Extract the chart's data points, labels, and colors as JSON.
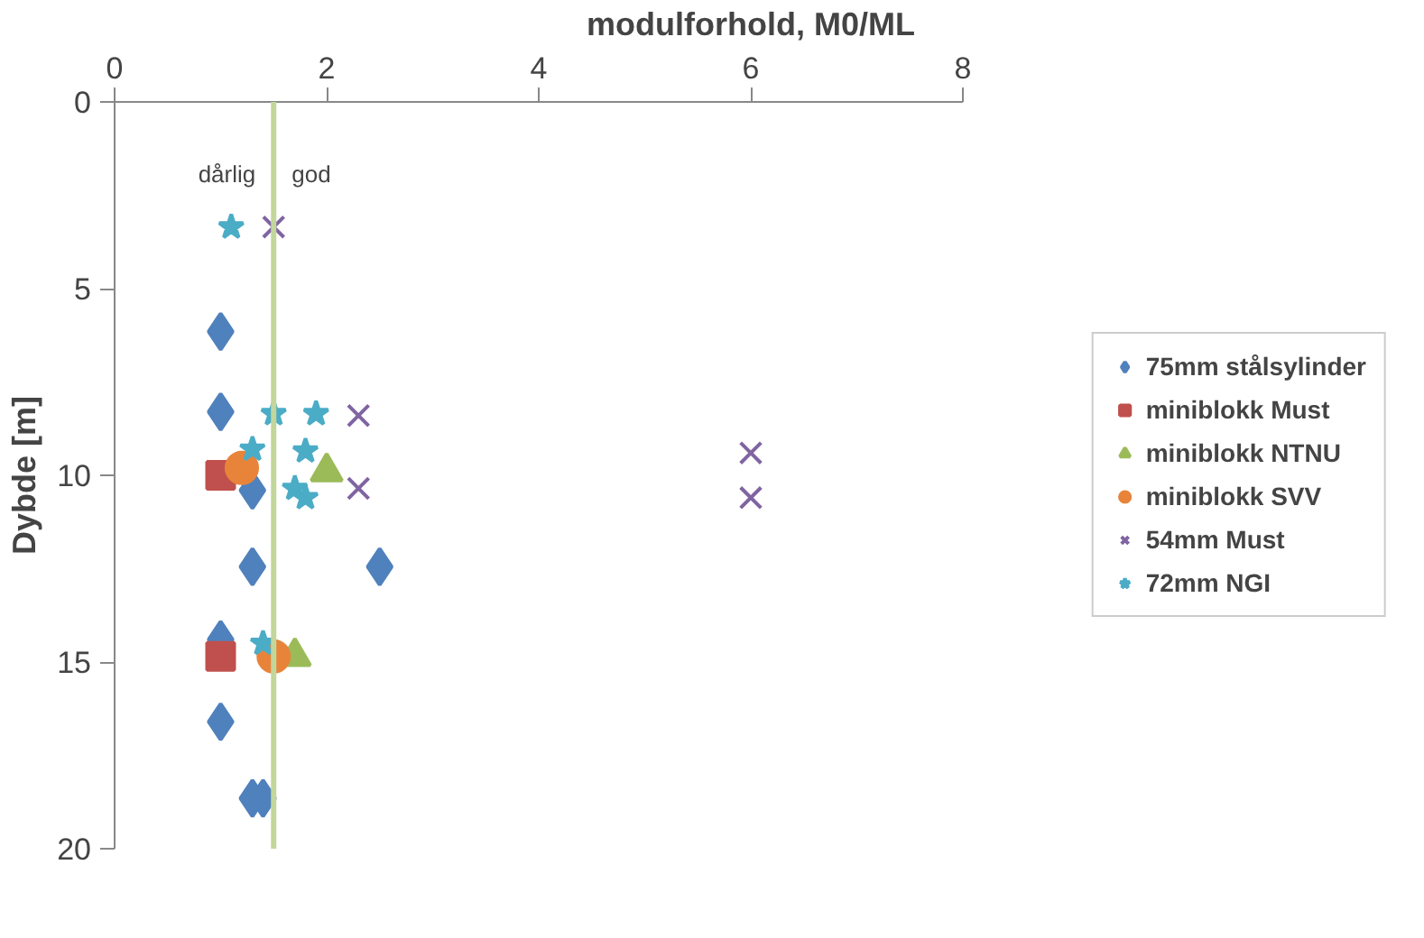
{
  "chart_data": {
    "type": "scatter",
    "xlabel": "modulforhold, M0/ML",
    "ylabel": "Dybde [m]",
    "xlim": [
      0,
      8
    ],
    "xticks": [
      0,
      2,
      4,
      6,
      8
    ],
    "ylim": [
      20,
      0
    ],
    "yticks": [
      0,
      5,
      10,
      15,
      20
    ],
    "grid": false,
    "legend": "right",
    "series": [
      {
        "name": "75mm stålsylinder",
        "color": "#4f81bd",
        "marker": "diamond",
        "x": [
          1.0,
          1.0,
          1.3,
          1.3,
          2.5,
          1.0,
          1.0,
          1.3,
          1.4
        ],
        "values": [
          6.15,
          8.3,
          10.4,
          12.45,
          12.45,
          14.4,
          16.6,
          18.65,
          18.65
        ]
      },
      {
        "name": "miniblokk Must",
        "color": "#c0504d",
        "marker": "square",
        "x": [
          1.0,
          1.0
        ],
        "values": [
          10.0,
          14.85
        ]
      },
      {
        "name": "miniblokk NTNU",
        "color": "#9bbb59",
        "marker": "triangle",
        "x": [
          2.0,
          1.7
        ],
        "values": [
          9.9,
          14.85
        ]
      },
      {
        "name": "miniblokk SVV",
        "color": "#e8843a",
        "marker": "circle",
        "x": [
          1.2,
          1.5
        ],
        "values": [
          9.8,
          14.85
        ]
      },
      {
        "name": "54mm Must",
        "color": "#8064a2",
        "marker": "cross",
        "x": [
          1.5,
          2.3,
          2.3,
          6.0,
          6.0
        ],
        "values": [
          3.35,
          8.4,
          10.35,
          9.4,
          10.6
        ]
      },
      {
        "name": "72mm NGI",
        "color": "#4bacc6",
        "marker": "star",
        "x": [
          1.1,
          1.5,
          1.9,
          1.3,
          1.8,
          1.7,
          1.8,
          1.4
        ],
        "values": [
          3.35,
          8.35,
          8.35,
          9.3,
          9.35,
          10.35,
          10.6,
          14.5
        ]
      }
    ],
    "ref_lines": [
      {
        "axis": "x",
        "value": 1.5,
        "color": "#c3d69b",
        "line_style": "solid"
      }
    ],
    "annotations": [
      "dårlig",
      "god"
    ]
  }
}
